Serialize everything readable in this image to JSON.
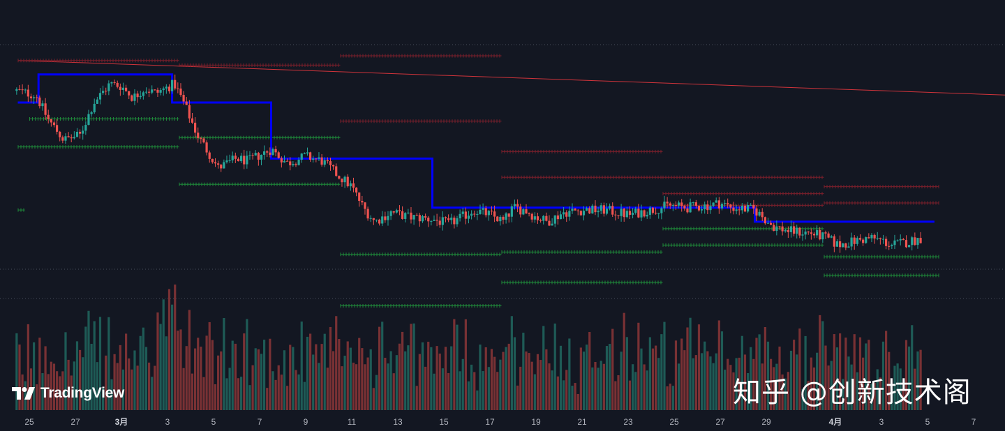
{
  "logo": {
    "text": "TradingView"
  },
  "watermark": {
    "text": "知乎 @创新技术阁"
  },
  "colors": {
    "background": "#131722",
    "up": "#26a69a",
    "down": "#ef5350",
    "trend": "#0000ff",
    "resistance_marker": "#7a1f2b",
    "support_marker": "#1f8a3a",
    "diagonal": "#d1343b",
    "grid_dotted": "#4a4f5c"
  },
  "chart_data": {
    "type": "candlestick",
    "title": "",
    "xlabel": "",
    "ylabel": "",
    "x_tick_labels": [
      {
        "label": "25",
        "day": 0
      },
      {
        "label": "27",
        "day": 2
      },
      {
        "label": "3月",
        "day": 4
      },
      {
        "label": "3",
        "day": 6
      },
      {
        "label": "5",
        "day": 8
      },
      {
        "label": "7",
        "day": 10
      },
      {
        "label": "9",
        "day": 12
      },
      {
        "label": "11",
        "day": 14
      },
      {
        "label": "13",
        "day": 16
      },
      {
        "label": "15",
        "day": 18
      },
      {
        "label": "17",
        "day": 20
      },
      {
        "label": "19",
        "day": 22
      },
      {
        "label": "21",
        "day": 24
      },
      {
        "label": "23",
        "day": 26
      },
      {
        "label": "25",
        "day": 28
      },
      {
        "label": "27",
        "day": 30
      },
      {
        "label": "29",
        "day": 32
      },
      {
        "label": "4月",
        "day": 35
      },
      {
        "label": "3",
        "day": 37
      },
      {
        "label": "5",
        "day": 39
      },
      {
        "label": "7",
        "day": 41
      }
    ],
    "y_range": [
      0,
      100
    ],
    "grid": "dotted horizontal lines",
    "price_path": [
      [
        -0.5,
        85
      ],
      [
        0.3,
        83
      ],
      [
        0.8,
        73
      ],
      [
        1.5,
        64
      ],
      [
        2.2,
        66
      ],
      [
        2.8,
        80
      ],
      [
        3.5,
        88
      ],
      [
        4.0,
        87
      ],
      [
        4.5,
        82
      ],
      [
        5.0,
        86
      ],
      [
        5.5,
        84
      ],
      [
        6.3,
        88
      ],
      [
        6.7,
        80
      ],
      [
        7.3,
        66
      ],
      [
        8.2,
        52
      ],
      [
        9.0,
        56
      ],
      [
        9.5,
        55
      ],
      [
        10.5,
        60
      ],
      [
        11.2,
        54
      ],
      [
        12.0,
        57
      ],
      [
        12.7,
        55
      ],
      [
        13.5,
        48
      ],
      [
        14.0,
        44
      ],
      [
        14.5,
        35
      ],
      [
        15.0,
        29
      ],
      [
        15.7,
        33
      ],
      [
        16.5,
        31
      ],
      [
        17.5,
        30
      ],
      [
        18.2,
        28
      ],
      [
        18.8,
        31
      ],
      [
        19.3,
        34
      ],
      [
        20.0,
        32
      ],
      [
        20.6,
        29
      ],
      [
        21.0,
        35
      ],
      [
        21.5,
        34
      ],
      [
        22.0,
        31
      ],
      [
        22.5,
        29
      ],
      [
        23.2,
        33
      ],
      [
        24.0,
        34
      ],
      [
        25.0,
        34
      ],
      [
        26.0,
        32
      ],
      [
        27.0,
        34
      ],
      [
        27.8,
        36
      ],
      [
        28.5,
        35
      ],
      [
        29.5,
        36
      ],
      [
        30.0,
        37
      ],
      [
        30.5,
        35
      ],
      [
        31.5,
        34
      ],
      [
        32.3,
        27
      ],
      [
        33.0,
        25
      ],
      [
        34.0,
        24
      ],
      [
        34.6,
        22
      ],
      [
        35.1,
        19
      ],
      [
        36.0,
        21
      ],
      [
        36.6,
        22
      ],
      [
        37.0,
        21
      ],
      [
        37.4,
        19
      ],
      [
        38.0,
        20
      ],
      [
        38.4,
        21
      ],
      [
        38.8,
        22
      ]
    ],
    "volume_range": [
      0,
      100
    ],
    "trend_line": [
      [
        -0.5,
        80
      ],
      [
        0.4,
        80
      ],
      [
        0.4,
        92
      ],
      [
        6.2,
        92
      ],
      [
        6.2,
        80
      ],
      [
        10.5,
        80
      ],
      [
        10.5,
        56
      ],
      [
        17.5,
        56
      ],
      [
        17.5,
        35
      ],
      [
        24.5,
        35
      ],
      [
        24.5,
        35
      ],
      [
        31.5,
        35
      ],
      [
        31.5,
        29
      ],
      [
        39.3,
        29
      ]
    ],
    "diagonal_line": [
      [
        -0.5,
        98
      ],
      [
        43,
        83
      ]
    ],
    "resistance_levels": [
      {
        "x1": -0.5,
        "x2": 6.5,
        "y": 98
      },
      {
        "x1": 6.5,
        "x2": 13.5,
        "y": 96
      },
      {
        "x1": 13.5,
        "x2": 20.5,
        "y": 100
      },
      {
        "x1": 13.5,
        "x2": 20.5,
        "y": 72
      },
      {
        "x1": 20.5,
        "x2": 27.5,
        "y": 59
      },
      {
        "x1": 20.5,
        "x2": 27.5,
        "y": 48
      },
      {
        "x1": 27.5,
        "x2": 34.5,
        "y": 48
      },
      {
        "x1": 27.5,
        "x2": 34.5,
        "y": 41
      },
      {
        "x1": 27.5,
        "x2": 34.5,
        "y": 36
      },
      {
        "x1": 34.5,
        "x2": 39.5,
        "y": 44
      },
      {
        "x1": 34.5,
        "x2": 39.5,
        "y": 37
      }
    ],
    "support_levels": [
      {
        "x1": -0.5,
        "x2": -0.2,
        "y": 34
      },
      {
        "x1": 0,
        "x2": 6.5,
        "y": 73
      },
      {
        "x1": -0.5,
        "x2": 6.5,
        "y": 61
      },
      {
        "x1": 6.5,
        "x2": 13.5,
        "y": 65
      },
      {
        "x1": 6.5,
        "x2": 13.5,
        "y": 45
      },
      {
        "x1": 13.5,
        "x2": 20.5,
        "y": 15
      },
      {
        "x1": 13.5,
        "x2": 20.5,
        "y": -7
      },
      {
        "x1": 20.5,
        "x2": 27.5,
        "y": 16
      },
      {
        "x1": 20.5,
        "x2": 27.5,
        "y": 3
      },
      {
        "x1": 27.5,
        "x2": 34.5,
        "y": 26
      },
      {
        "x1": 27.5,
        "x2": 34.5,
        "y": 19
      },
      {
        "x1": 34.5,
        "x2": 39.5,
        "y": 14
      },
      {
        "x1": 34.5,
        "x2": 39.5,
        "y": 6
      }
    ]
  }
}
